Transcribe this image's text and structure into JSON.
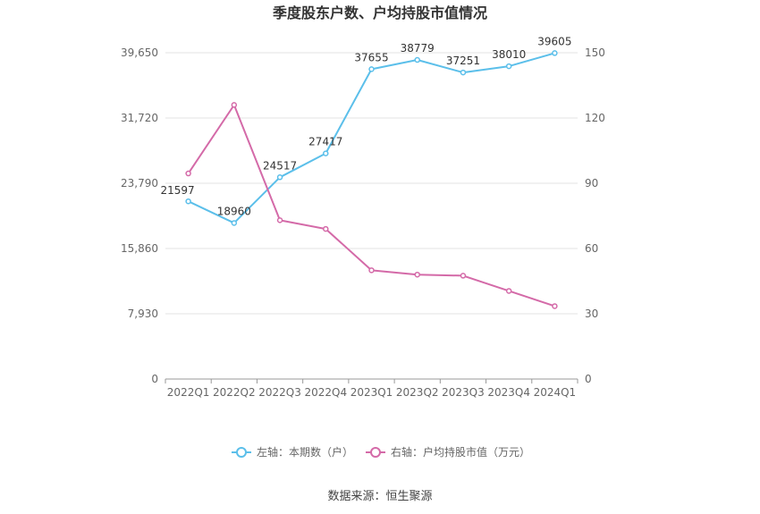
{
  "chart_data": {
    "type": "line",
    "title": "季度股东户数、户均持股市值情况",
    "categories": [
      "2022Q1",
      "2022Q2",
      "2022Q3",
      "2022Q4",
      "2023Q1",
      "2023Q2",
      "2023Q3",
      "2023Q4",
      "2024Q1"
    ],
    "left_axis": {
      "ticks": [
        "0",
        "7,930",
        "15,860",
        "23,790",
        "31,720",
        "39,650"
      ],
      "ylim": [
        0,
        39650
      ]
    },
    "right_axis": {
      "ticks": [
        "0",
        "30",
        "60",
        "90",
        "120",
        "150"
      ],
      "ylim": [
        0,
        150
      ]
    },
    "series": [
      {
        "name": "左轴：本期数（户）",
        "axis": "left",
        "color": "#5bbfea",
        "values": [
          21597,
          18960,
          24517,
          27417,
          37655,
          38779,
          37251,
          38010,
          39605
        ],
        "labels": [
          "21597",
          "18960",
          "24517",
          "27417",
          "37655",
          "38779",
          "37251",
          "38010",
          "39605"
        ]
      },
      {
        "name": "右轴：户均持股市值（万元）",
        "axis": "right",
        "color": "#d46aa8",
        "values": [
          94.5,
          126,
          73,
          69,
          50,
          48,
          47.5,
          40.5,
          33.5
        ]
      }
    ],
    "legend_position": "bottom",
    "grid": true
  },
  "source": "数据来源：恒生聚源"
}
